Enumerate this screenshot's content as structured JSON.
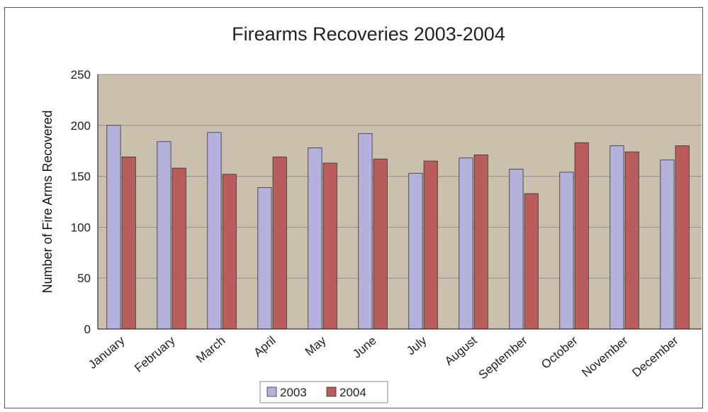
{
  "chart_data": {
    "type": "bar",
    "title": "Firearms Recoveries 2003-2004",
    "xlabel": "",
    "ylabel": "Number of Fire Arms Recovered",
    "ylim": [
      0,
      250
    ],
    "yticks": [
      0,
      50,
      100,
      150,
      200,
      250
    ],
    "categories": [
      "January",
      "February",
      "March",
      "April",
      "May",
      "June",
      "July",
      "August",
      "September",
      "October",
      "November",
      "December"
    ],
    "series": [
      {
        "name": "2003",
        "color": "#b4b2dc",
        "values": [
          200,
          184,
          193,
          139,
          178,
          192,
          153,
          168,
          157,
          154,
          180,
          166
        ]
      },
      {
        "name": "2004",
        "color": "#b85c5c",
        "values": [
          169,
          158,
          152,
          169,
          163,
          167,
          165,
          171,
          133,
          183,
          174,
          180
        ]
      }
    ],
    "grid": true,
    "legend_position": "bottom",
    "colors": {
      "plot_background": "#cbbfae",
      "frame": "#555555"
    }
  }
}
